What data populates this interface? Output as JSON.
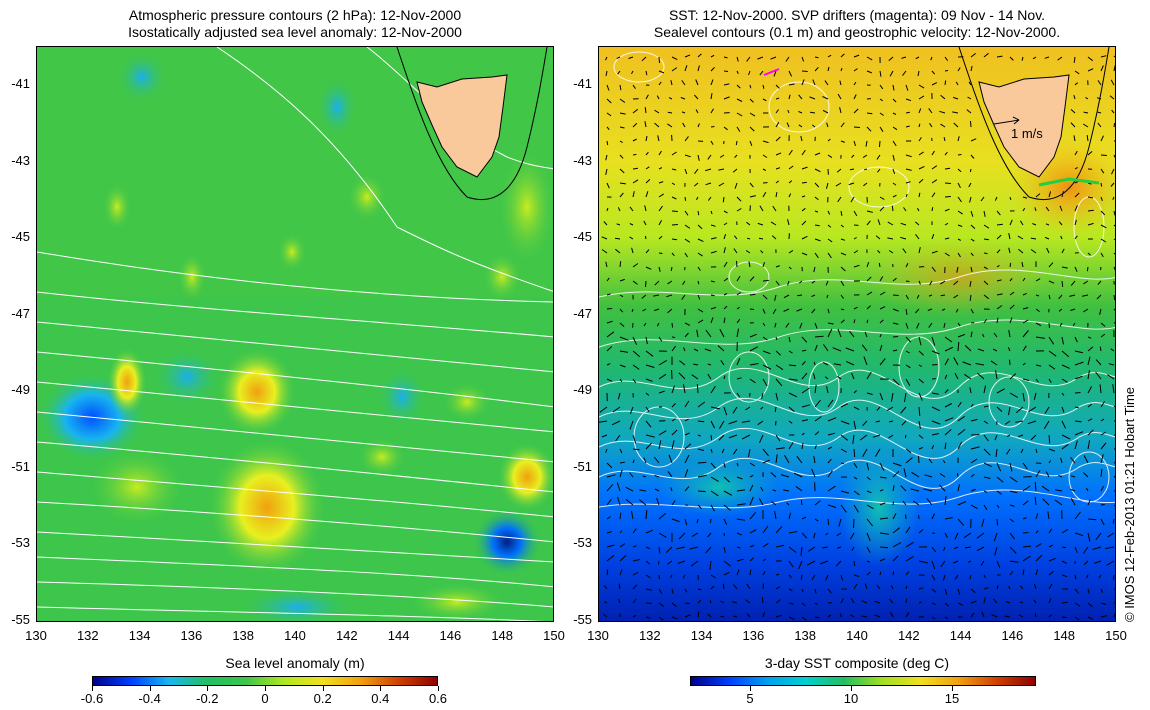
{
  "left_panel": {
    "title_line1": "Atmospheric pressure contours (2 hPa): 12-Nov-2000",
    "title_line2": "Isostatically adjusted sea level anomaly: 12-Nov-2000",
    "colorbar_label": "Sea level anomaly (m)",
    "colorbar_ticks": [
      "-0.6",
      "-0.4",
      "-0.2",
      "0",
      "0.2",
      "0.4",
      "0.6"
    ]
  },
  "right_panel": {
    "title_line1": "SST: 12-Nov-2000. SVP drifters (magenta): 09 Nov - 14 Nov.",
    "title_line2": "Sealevel contours (0.1 m) and geostrophic velocity: 12-Nov-2000.",
    "velocity_scale_label": "1 m/s",
    "colorbar_label": "3-day SST composite (deg C)",
    "colorbar_ticks": [
      "5",
      "10",
      "15"
    ]
  },
  "axes": {
    "lat_ticks": [
      "-41",
      "-43",
      "-45",
      "-47",
      "-49",
      "-51",
      "-53",
      "-55"
    ],
    "lon_ticks": [
      "130",
      "132",
      "134",
      "136",
      "138",
      "140",
      "142",
      "144",
      "146",
      "148",
      "150"
    ]
  },
  "credit": "© IMOS 12-Feb-2013 01:21 Hobart Time",
  "colors": {
    "land": "#f9c99c",
    "sla_background": "#3dc64b",
    "sla_cmap": [
      "#00008b",
      "#0055ff",
      "#19c3f0",
      "#20c060",
      "#60d030",
      "#e8f020",
      "#f0a010",
      "#a00000"
    ],
    "sst_cmap": [
      "#00008b",
      "#0040ff",
      "#00c0e0",
      "#10c060",
      "#d0f020",
      "#f0a010",
      "#b00000"
    ],
    "drifter": "#ff00ff"
  }
}
